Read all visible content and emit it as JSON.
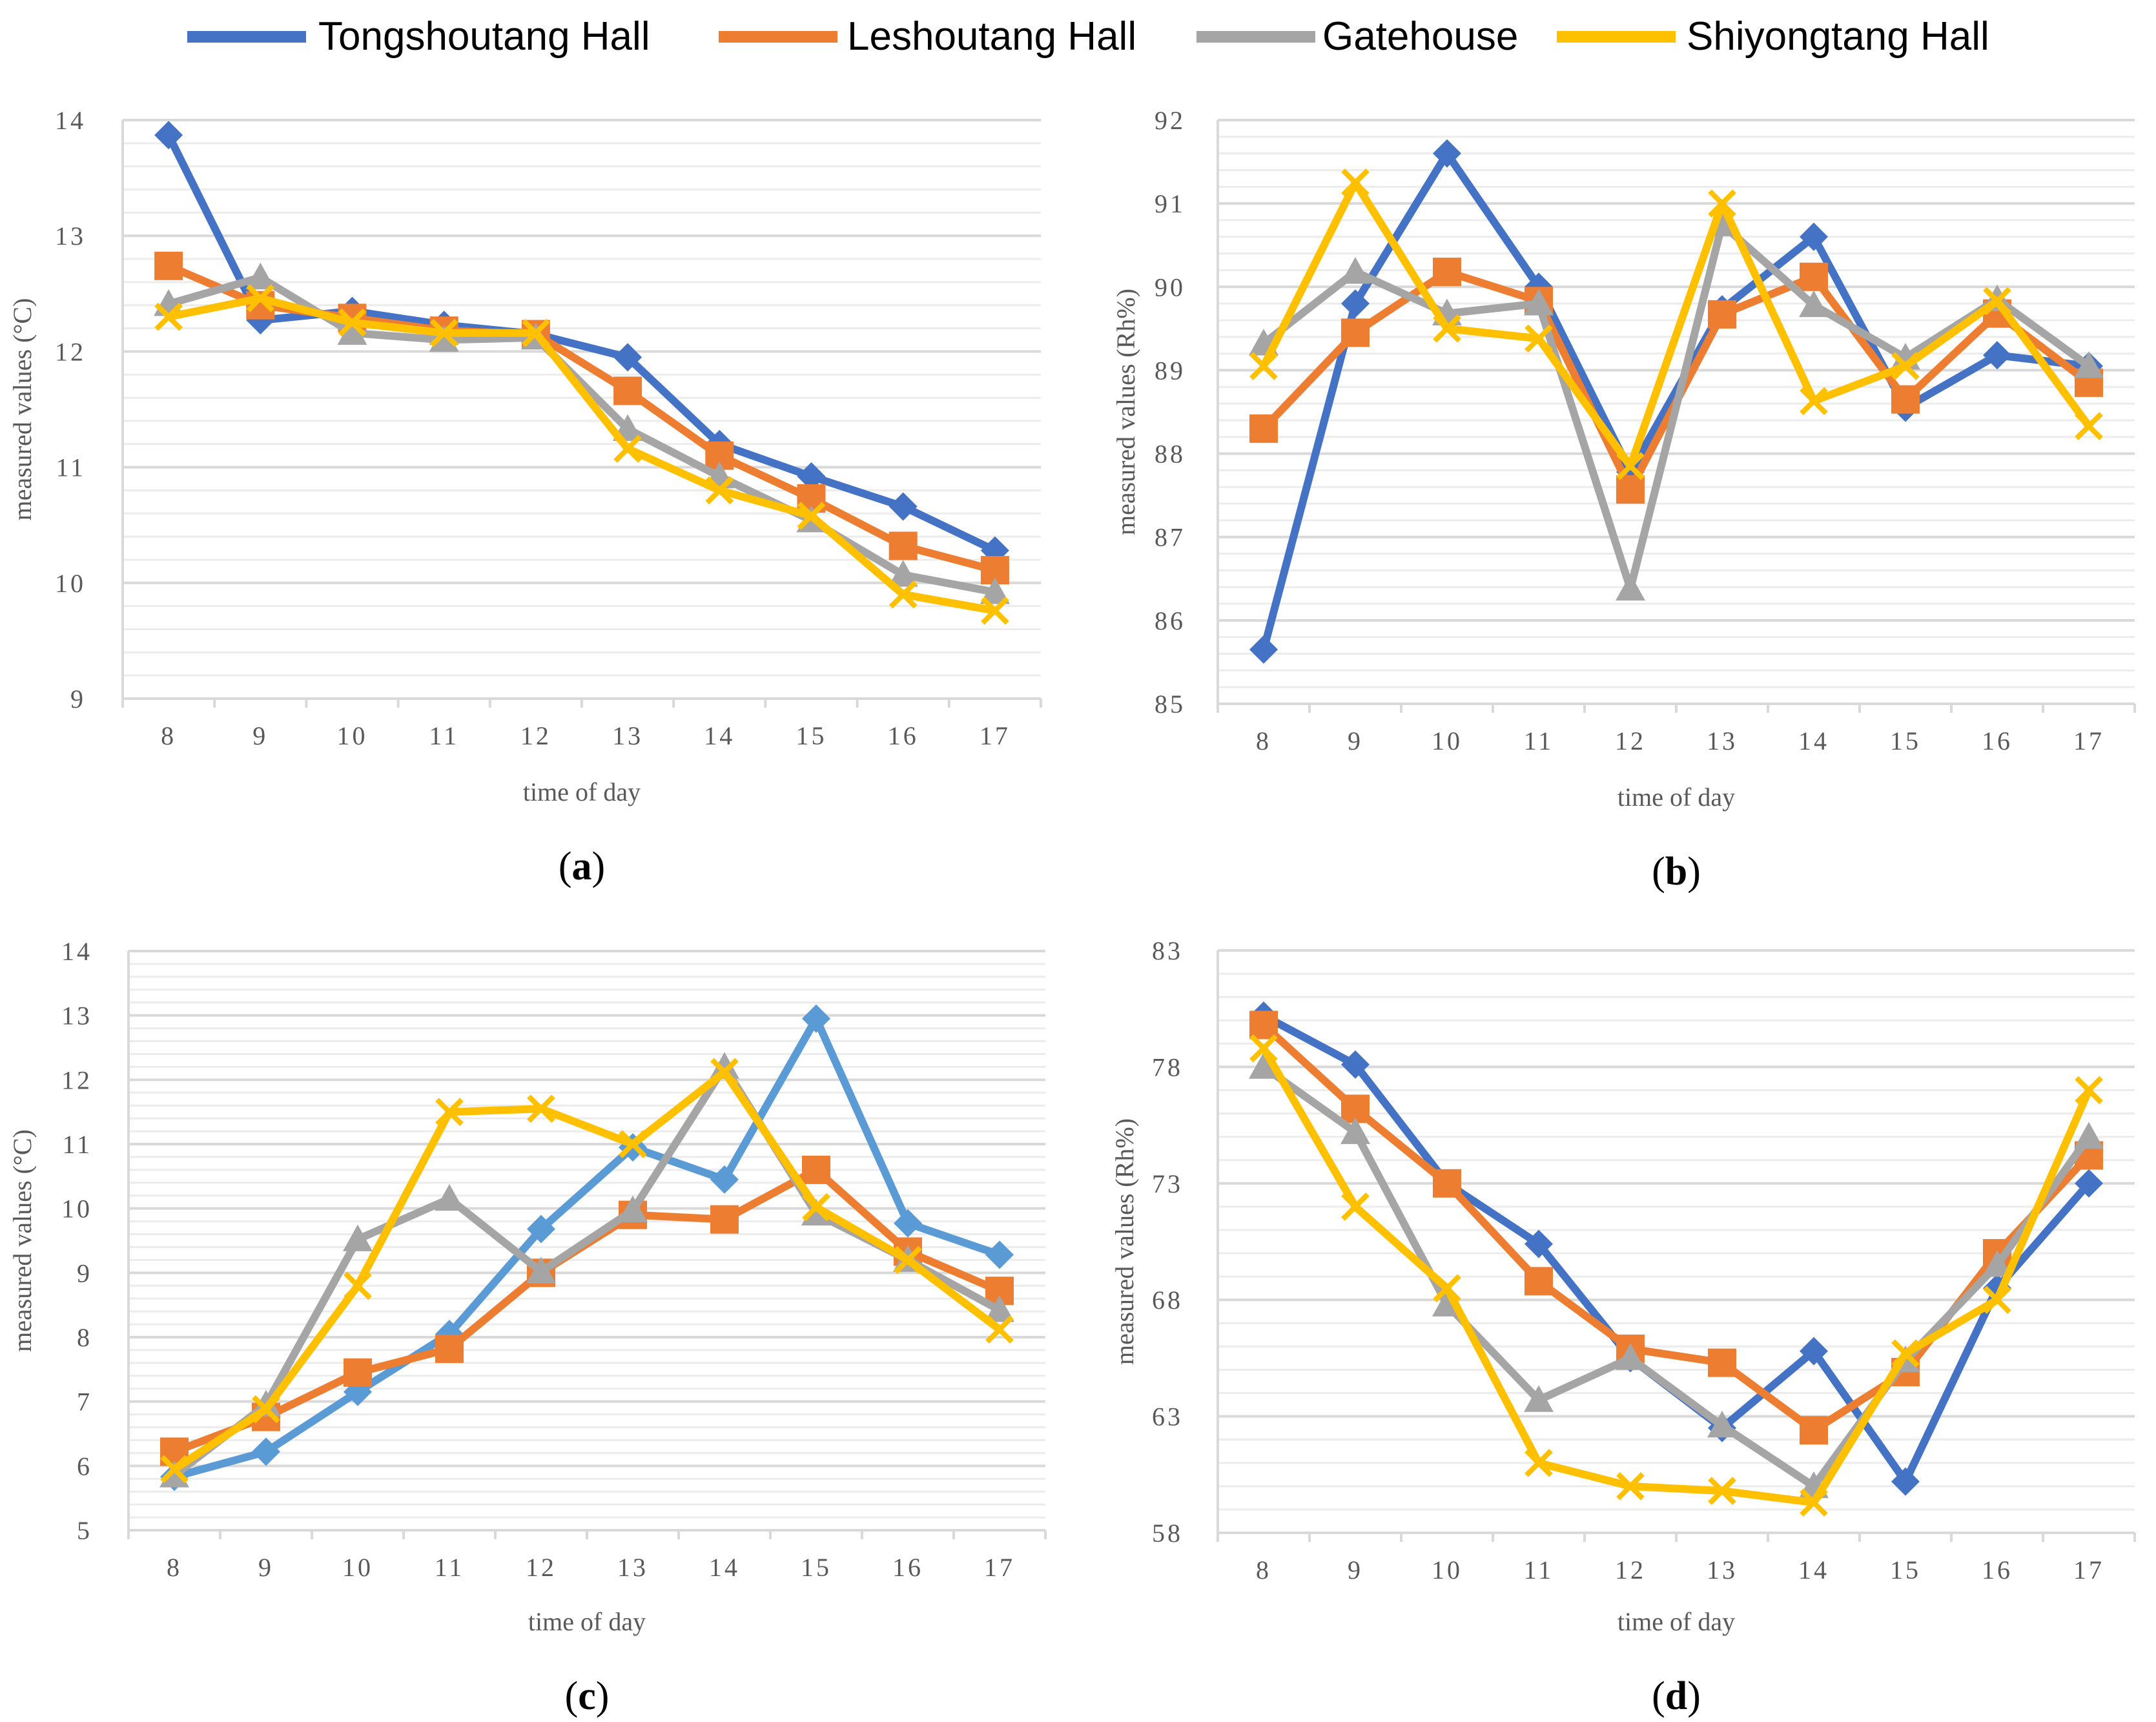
{
  "legend": [
    {
      "name": "Tongshoutang Hall",
      "color": "#4472C4",
      "marker": "diamond"
    },
    {
      "name": "Leshoutang Hall",
      "color": "#ED7D31",
      "marker": "square"
    },
    {
      "name": "Gatehouse",
      "color": "#A5A5A5",
      "marker": "triangle"
    },
    {
      "name": "Shiyongtang Hall",
      "color": "#FFC000",
      "marker": "x"
    }
  ],
  "chart_data": [
    {
      "id": "a",
      "label": "a",
      "type": "line",
      "xlabel": "time of day",
      "ylabel": "measured values (°C)",
      "ylim": [
        9,
        14
      ],
      "yticks": [
        9,
        10,
        11,
        12,
        13,
        14
      ],
      "categories": [
        "8",
        "9",
        "10",
        "11",
        "12",
        "13",
        "14",
        "15",
        "16",
        "17"
      ],
      "series": [
        {
          "name": "Tongshoutang Hall",
          "color": "#4472C4",
          "marker": "diamond",
          "values": [
            13.87,
            12.27,
            12.35,
            12.23,
            12.15,
            11.95,
            11.2,
            10.92,
            10.66,
            10.28
          ]
        },
        {
          "name": "Leshoutang Hall",
          "color": "#ED7D31",
          "marker": "square",
          "values": [
            12.74,
            12.4,
            12.29,
            12.18,
            12.15,
            11.66,
            11.1,
            10.73,
            10.32,
            10.11
          ]
        },
        {
          "name": "Gatehouse",
          "color": "#A5A5A5",
          "marker": "triangle",
          "values": [
            12.41,
            12.64,
            12.16,
            12.1,
            12.12,
            11.33,
            10.92,
            10.54,
            10.07,
            9.92
          ]
        },
        {
          "name": "Shiyongtang Hall",
          "color": "#FFC000",
          "marker": "x",
          "values": [
            12.3,
            12.46,
            12.25,
            12.16,
            12.16,
            11.16,
            10.8,
            10.58,
            9.9,
            9.76
          ]
        }
      ]
    },
    {
      "id": "b",
      "label": "b",
      "type": "line",
      "xlabel": "time of day",
      "ylabel": "measured values (Rh%)",
      "ylim": [
        85,
        92
      ],
      "yticks": [
        85,
        86,
        87,
        88,
        89,
        90,
        91,
        92
      ],
      "categories": [
        "8",
        "9",
        "10",
        "11",
        "12",
        "13",
        "14",
        "15",
        "16",
        "17"
      ],
      "series": [
        {
          "name": "Tongshoutang Hall",
          "color": "#4472C4",
          "marker": "diamond",
          "values": [
            85.65,
            89.8,
            91.6,
            90.0,
            87.78,
            89.73,
            90.6,
            88.55,
            89.18,
            89.05
          ]
        },
        {
          "name": "Leshoutang Hall",
          "color": "#ED7D31",
          "marker": "square",
          "values": [
            88.3,
            89.45,
            90.18,
            89.83,
            87.57,
            89.67,
            90.12,
            88.65,
            89.68,
            88.85
          ]
        },
        {
          "name": "Gatehouse",
          "color": "#A5A5A5",
          "marker": "triangle",
          "values": [
            89.32,
            90.18,
            89.68,
            89.8,
            86.38,
            90.75,
            89.78,
            89.15,
            89.85,
            89.05
          ]
        },
        {
          "name": "Shiyongtang Hall",
          "color": "#FFC000",
          "marker": "x",
          "values": [
            89.05,
            91.25,
            89.5,
            89.38,
            87.85,
            91.0,
            88.63,
            89.05,
            89.83,
            88.33
          ]
        }
      ]
    },
    {
      "id": "c",
      "label": "c",
      "type": "line",
      "xlabel": "time of day",
      "ylabel": "measured values (°C)",
      "ylim": [
        5,
        14
      ],
      "yticks": [
        5,
        6,
        7,
        8,
        9,
        10,
        11,
        12,
        13,
        14
      ],
      "categories": [
        "8",
        "9",
        "10",
        "11",
        "12",
        "13",
        "14",
        "15",
        "16",
        "17"
      ],
      "series": [
        {
          "name": "Tongshoutang Hall",
          "color": "#5B9BD5",
          "marker": "diamond",
          "values": [
            5.83,
            6.22,
            7.15,
            8.05,
            9.68,
            10.95,
            10.45,
            12.95,
            9.77,
            9.28
          ]
        },
        {
          "name": "Leshoutang Hall",
          "color": "#ED7D31",
          "marker": "square",
          "values": [
            6.22,
            6.76,
            7.45,
            7.82,
            9.0,
            9.9,
            9.83,
            10.6,
            9.33,
            8.72
          ]
        },
        {
          "name": "Gatehouse",
          "color": "#A5A5A5",
          "marker": "triangle",
          "values": [
            5.85,
            6.95,
            9.52,
            10.15,
            9.02,
            9.97,
            12.2,
            9.92,
            9.2,
            8.42
          ]
        },
        {
          "name": "Shiyongtang Hall",
          "color": "#FFC000",
          "marker": "x",
          "values": [
            5.95,
            6.88,
            8.8,
            11.5,
            11.55,
            11.0,
            12.12,
            10.02,
            9.2,
            8.12
          ]
        }
      ]
    },
    {
      "id": "d",
      "label": "d",
      "type": "line",
      "xlabel": "time of day",
      "ylabel": "measured values (Rh%)",
      "ylim": [
        58,
        83
      ],
      "yticks": [
        58,
        63,
        68,
        73,
        78,
        83
      ],
      "categories": [
        "8",
        "9",
        "10",
        "11",
        "12",
        "13",
        "14",
        "15",
        "16",
        "17"
      ],
      "series": [
        {
          "name": "Tongshoutang Hall",
          "color": "#4472C4",
          "marker": "diamond",
          "values": [
            80.2,
            78.1,
            73.0,
            70.4,
            65.5,
            62.5,
            65.8,
            60.2,
            68.5,
            73.0
          ]
        },
        {
          "name": "Leshoutang Hall",
          "color": "#ED7D31",
          "marker": "square",
          "values": [
            79.8,
            76.2,
            73.0,
            68.8,
            65.9,
            65.3,
            62.4,
            64.9,
            70.0,
            74.2
          ]
        },
        {
          "name": "Gatehouse",
          "color": "#A5A5A5",
          "marker": "triangle",
          "values": [
            78.0,
            75.2,
            67.8,
            63.7,
            65.5,
            62.6,
            60.0,
            65.4,
            69.5,
            75.0
          ]
        },
        {
          "name": "Shiyongtang Hall",
          "color": "#FFC000",
          "marker": "x",
          "values": [
            78.8,
            72.0,
            68.5,
            61.0,
            60.0,
            59.8,
            59.3,
            65.7,
            68.0,
            77.0
          ]
        }
      ]
    }
  ]
}
